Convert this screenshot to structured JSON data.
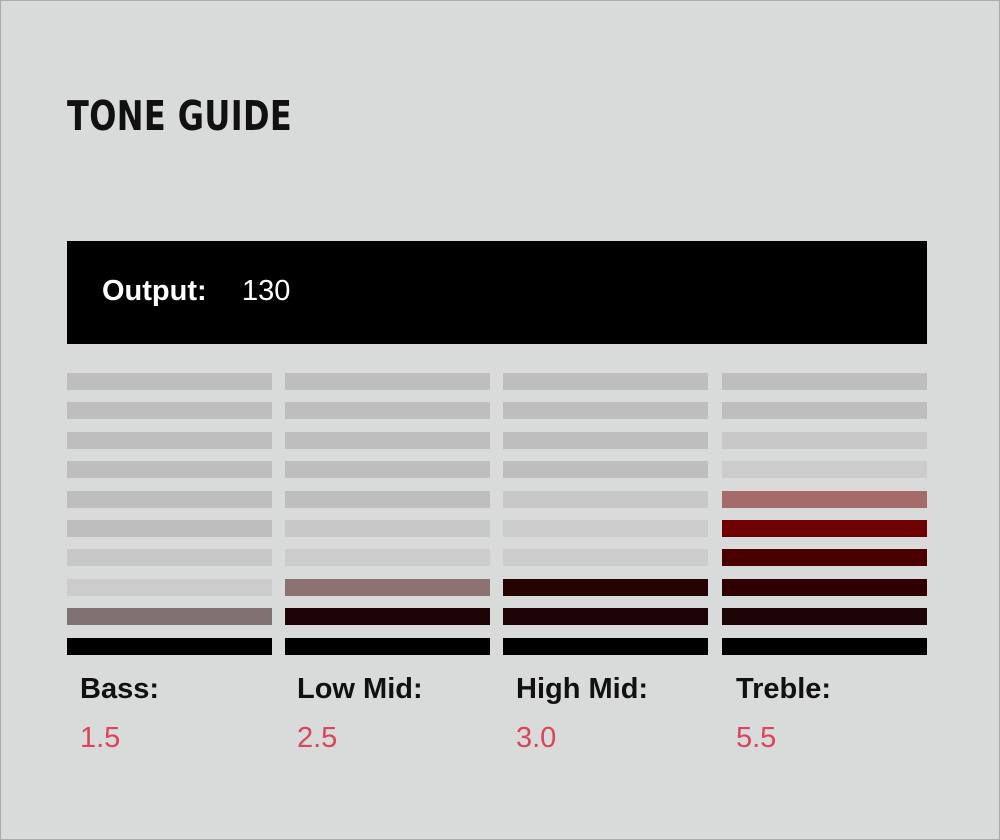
{
  "title": "TONE GUIDE",
  "output": {
    "label": "Output:",
    "value": "130"
  },
  "meter_segments": 10,
  "bands": [
    {
      "label": "Bass:",
      "value": "1.5",
      "segment_colors": [
        "#bebebe",
        "#bebebe",
        "#bebebe",
        "#bebebe",
        "#bebebe",
        "#bebebe",
        "#c8c8c8",
        "#cccccc",
        "#807272",
        "#000000"
      ]
    },
    {
      "label": "Low Mid:",
      "value": "2.5",
      "segment_colors": [
        "#bebebe",
        "#bebebe",
        "#bebebe",
        "#bebebe",
        "#bebebe",
        "#c8c8c8",
        "#cccccc",
        "#8c7272",
        "#1e0505",
        "#000000"
      ]
    },
    {
      "label": "High Mid:",
      "value": "3.0",
      "segment_colors": [
        "#bebebe",
        "#bebebe",
        "#bebebe",
        "#bebebe",
        "#c8c8c8",
        "#cccccc",
        "#cccccc",
        "#260303",
        "#1e0505",
        "#000000"
      ]
    },
    {
      "label": "Treble:",
      "value": "5.5",
      "segment_colors": [
        "#bebebe",
        "#bebebe",
        "#c8c8c8",
        "#cccccc",
        "#a56a6a",
        "#6e0000",
        "#4a0000",
        "#2e0000",
        "#1e0505",
        "#000000"
      ]
    }
  ],
  "colors": {
    "background": "#d8dbda",
    "output_bar": "#000000",
    "value_text": "#d9455a"
  }
}
